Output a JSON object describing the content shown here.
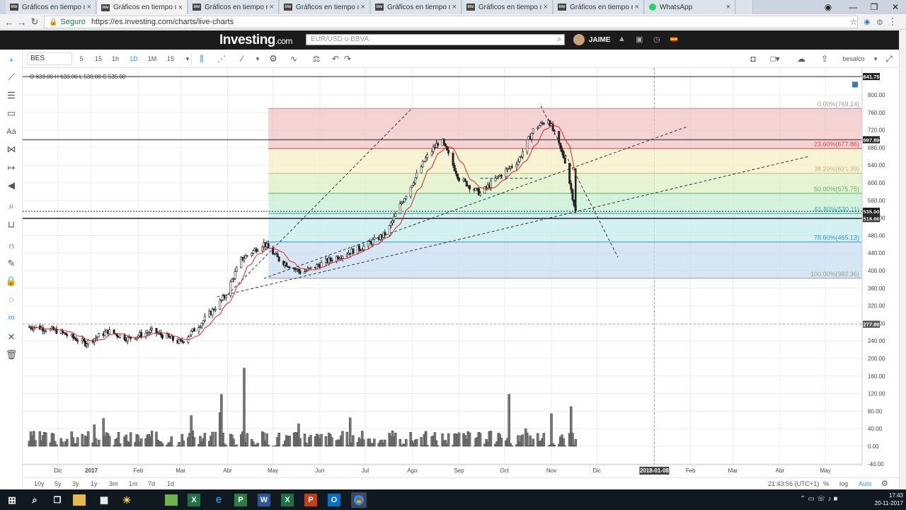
{
  "browser": {
    "tabs": [
      {
        "label": "Gráficos en tiempo real",
        "icon": "investing-favicon-icon"
      },
      {
        "label": "Gráficos en tiempo real",
        "icon": "investing-favicon-icon"
      },
      {
        "label": "Gráficos en tiempo real",
        "icon": "investing-favicon-icon"
      },
      {
        "label": "Gráficos en tiempo real",
        "icon": "investing-favicon-icon"
      },
      {
        "label": "Gráficos en tiempo real",
        "icon": "investing-favicon-icon"
      },
      {
        "label": "Gráficos en tiempo real",
        "icon": "investing-favicon-icon"
      },
      {
        "label": "Gráficos en tiempo real",
        "icon": "investing-favicon-icon"
      },
      {
        "label": "WhatsApp",
        "icon": "whatsapp-icon"
      }
    ],
    "active_tab": 1,
    "security_label": "Seguro",
    "url": "https://es.investing.com/charts/live-charts"
  },
  "site": {
    "logo": "Investing",
    "logo_suffix": ".com",
    "search_placeholder": "EUR/USD o BBVA",
    "user": "JAIME"
  },
  "toolbar": {
    "symbol": "BES",
    "intervals": [
      "5",
      "15",
      "1h",
      "1D",
      "1M",
      "15"
    ],
    "selected_interval": "1D",
    "account": "besalco"
  },
  "chart": {
    "ohlc_text": "O 633.00  H 633.00  L 530.00  C 535.00",
    "y_ticks": [
      "800.00",
      "760.00",
      "720.00",
      "680.00",
      "640.00",
      "600.00",
      "560.00",
      "520.00",
      "480.00",
      "440.00",
      "400.00",
      "360.00",
      "320.00",
      "280.00",
      "240.00",
      "200.00",
      "160.00",
      "120.00",
      "80.00",
      "40.00",
      "0.00",
      "-40.00"
    ],
    "x_labels": [
      "Dic",
      "2017",
      "Feb",
      "Mar",
      "Abr",
      "May",
      "Jun",
      "Jul",
      "Ago",
      "Sep",
      "Oct",
      "Nov",
      "Dic",
      "2018-01-08",
      "Feb",
      "Mar",
      "Abr",
      "May"
    ],
    "price_badges": [
      {
        "label": "841.75",
        "value": 841.75
      },
      {
        "label": "697.89",
        "value": 697.89
      },
      {
        "label": "535.00",
        "value": 535.0
      },
      {
        "label": "518.66",
        "value": 518.66
      },
      {
        "label": "277.86",
        "value": 277.86
      }
    ],
    "fib_labels": [
      "0.00%(769.14)",
      "23.60%(677.86)",
      "38.20%(621.39)",
      "50.00%(575.75)",
      "61.80%(530.11)",
      "78.60%(465.13)",
      "100.00%(382.36)"
    ],
    "fib_levels": [
      769.14,
      677.86,
      621.39,
      575.75,
      530.11,
      465.13,
      382.36
    ],
    "fib_colors": [
      "#f2c4c4",
      "#f4efc4",
      "#dff0c4",
      "#c6efd4",
      "#c6ecec",
      "#c9def0"
    ]
  },
  "bottom": {
    "ranges": [
      "10y",
      "5y",
      "3y",
      "1y",
      "3m",
      "1m",
      "7d",
      "1d"
    ],
    "timezone": "21:43:56 (UTC+1)",
    "options": [
      "%",
      "log",
      "Auto"
    ],
    "selected_option": "Auto"
  },
  "taskbar": {
    "time": "17:43",
    "date": "20-11-2017"
  },
  "chart_data": {
    "type": "candlestick",
    "y_range": [
      -60,
      860
    ],
    "x_range_months": [
      "2016-11-15",
      "2018-05-20"
    ],
    "close_approx": [
      {
        "date": "2016-11-25",
        "v": 272
      },
      {
        "date": "2016-12-10",
        "v": 262
      },
      {
        "date": "2016-12-28",
        "v": 235
      },
      {
        "date": "2017-01-12",
        "v": 262
      },
      {
        "date": "2017-01-25",
        "v": 245
      },
      {
        "date": "2017-02-10",
        "v": 262
      },
      {
        "date": "2017-03-01",
        "v": 236
      },
      {
        "date": "2017-03-15",
        "v": 282
      },
      {
        "date": "2017-03-30",
        "v": 340
      },
      {
        "date": "2017-04-10",
        "v": 425
      },
      {
        "date": "2017-04-25",
        "v": 462
      },
      {
        "date": "2017-05-05",
        "v": 425
      },
      {
        "date": "2017-05-20",
        "v": 395
      },
      {
        "date": "2017-06-10",
        "v": 428
      },
      {
        "date": "2017-06-30",
        "v": 455
      },
      {
        "date": "2017-07-15",
        "v": 485
      },
      {
        "date": "2017-07-25",
        "v": 555
      },
      {
        "date": "2017-08-10",
        "v": 655
      },
      {
        "date": "2017-08-20",
        "v": 700
      },
      {
        "date": "2017-09-01",
        "v": 610
      },
      {
        "date": "2017-09-15",
        "v": 575
      },
      {
        "date": "2017-09-25",
        "v": 608
      },
      {
        "date": "2017-10-10",
        "v": 650
      },
      {
        "date": "2017-10-20",
        "v": 720
      },
      {
        "date": "2017-10-30",
        "v": 745
      },
      {
        "date": "2017-11-10",
        "v": 650
      },
      {
        "date": "2017-11-17",
        "v": 535
      }
    ]
  }
}
